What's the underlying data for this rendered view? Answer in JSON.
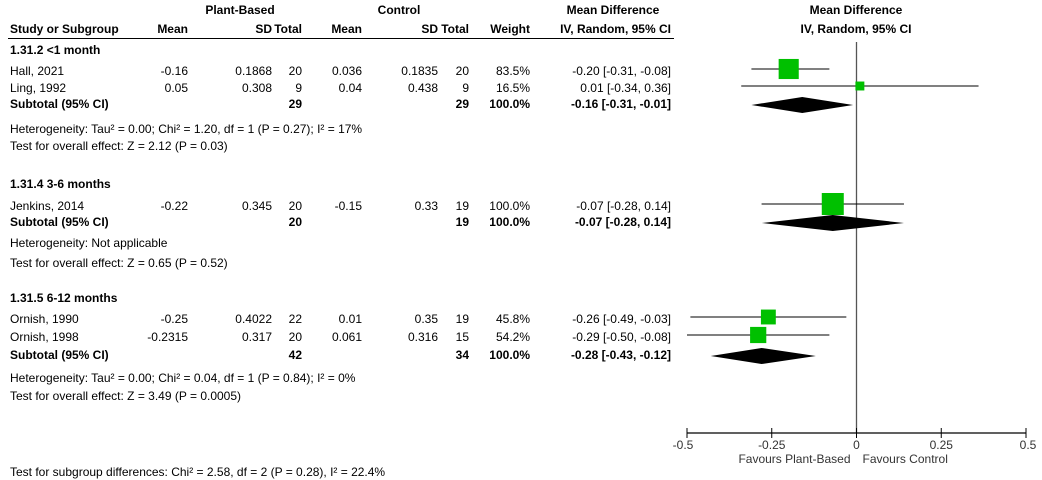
{
  "header": {
    "group1": "Plant-Based",
    "group2": "Control",
    "effect_header": "Mean Difference",
    "plot_header": "Mean Difference",
    "columns": [
      "Study or Subgroup",
      "Mean",
      "SD",
      "Total",
      "Mean",
      "SD",
      "Total",
      "Weight",
      "IV, Random, 95% CI"
    ],
    "plot_method": "IV, Random, 95% CI"
  },
  "subgroups": [
    {
      "title": "1.31.2 <1 month",
      "studies": [
        {
          "name": "Hall, 2021",
          "pb_mean": "-0.16",
          "pb_sd": "0.1868",
          "pb_total": "20",
          "c_mean": "0.036",
          "c_sd": "0.1835",
          "c_total": "20",
          "weight": "83.5%",
          "ci": "-0.20 [-0.31, -0.08]"
        },
        {
          "name": "Ling, 1992",
          "pb_mean": "0.05",
          "pb_sd": "0.308",
          "pb_total": "9",
          "c_mean": "0.04",
          "c_sd": "0.438",
          "c_total": "9",
          "weight": "16.5%",
          "ci": "0.01 [-0.34, 0.36]"
        }
      ],
      "subtotal": {
        "label": "Subtotal (95% CI)",
        "pb_total": "29",
        "c_total": "29",
        "weight": "100.0%",
        "ci": "-0.16 [-0.31, -0.01]"
      },
      "heterogeneity": "Heterogeneity: Tau² = 0.00; Chi² = 1.20, df = 1 (P = 0.27); I² = 17%",
      "overall": "Test for overall effect: Z = 2.12 (P = 0.03)"
    },
    {
      "title": "1.31.4 3-6 months",
      "studies": [
        {
          "name": "Jenkins, 2014",
          "pb_mean": "-0.22",
          "pb_sd": "0.345",
          "pb_total": "20",
          "c_mean": "-0.15",
          "c_sd": "0.33",
          "c_total": "19",
          "weight": "100.0%",
          "ci": "-0.07 [-0.28, 0.14]"
        }
      ],
      "subtotal": {
        "label": "Subtotal (95% CI)",
        "pb_total": "20",
        "c_total": "19",
        "weight": "100.0%",
        "ci": "-0.07 [-0.28, 0.14]"
      },
      "heterogeneity": "Heterogeneity: Not applicable",
      "overall": "Test for overall effect: Z = 0.65 (P = 0.52)"
    },
    {
      "title": "1.31.5 6-12 months",
      "studies": [
        {
          "name": "Ornish, 1990",
          "pb_mean": "-0.25",
          "pb_sd": "0.4022",
          "pb_total": "22",
          "c_mean": "0.01",
          "c_sd": "0.35",
          "c_total": "19",
          "weight": "45.8%",
          "ci": "-0.26 [-0.49, -0.03]"
        },
        {
          "name": "Ornish, 1998",
          "pb_mean": "-0.2315",
          "pb_sd": "0.317",
          "pb_total": "20",
          "c_mean": "0.061",
          "c_sd": "0.316",
          "c_total": "15",
          "weight": "54.2%",
          "ci": "-0.29 [-0.50, -0.08]"
        }
      ],
      "subtotal": {
        "label": "Subtotal (95% CI)",
        "pb_total": "42",
        "c_total": "34",
        "weight": "100.0%",
        "ci": "-0.28 [-0.43, -0.12]"
      },
      "heterogeneity": "Heterogeneity: Tau² = 0.00; Chi² = 0.04, df = 1 (P = 0.84); I² = 0%",
      "overall": "Test for overall effect: Z = 3.49 (P = 0.0005)"
    }
  ],
  "subgroup_test": "Test for subgroup differences: Chi² = 2.58, df = 2 (P = 0.28), I² = 22.4%",
  "chart_data": {
    "type": "forest",
    "xlim": [
      -0.5,
      0.5
    ],
    "xticks": [
      "-0.5",
      "-0.25",
      "0",
      "0.25",
      "0.5"
    ],
    "xtick_values": [
      -0.5,
      -0.25,
      0,
      0.25,
      0.5
    ],
    "left_label": "Favours Plant-Based",
    "right_label": "Favours Control",
    "marker_color": "#00c000",
    "diamond_color": "#000000",
    "studies": [
      {
        "name": "Hall, 2021",
        "md": -0.2,
        "lo": -0.31,
        "hi": -0.08,
        "weight": 83.5
      },
      {
        "name": "Ling, 1992",
        "md": 0.01,
        "lo": -0.34,
        "hi": 0.36,
        "weight": 16.5
      },
      {
        "name": "Jenkins, 2014",
        "md": -0.07,
        "lo": -0.28,
        "hi": 0.14,
        "weight": 100.0
      },
      {
        "name": "Ornish, 1990",
        "md": -0.26,
        "lo": -0.49,
        "hi": -0.03,
        "weight": 45.8
      },
      {
        "name": "Ornish, 1998",
        "md": -0.29,
        "lo": -0.5,
        "hi": -0.08,
        "weight": 54.2
      }
    ],
    "subtotals": [
      {
        "md": -0.16,
        "lo": -0.31,
        "hi": -0.01
      },
      {
        "md": -0.07,
        "lo": -0.28,
        "hi": 0.14
      },
      {
        "md": -0.28,
        "lo": -0.43,
        "hi": -0.12
      }
    ]
  }
}
